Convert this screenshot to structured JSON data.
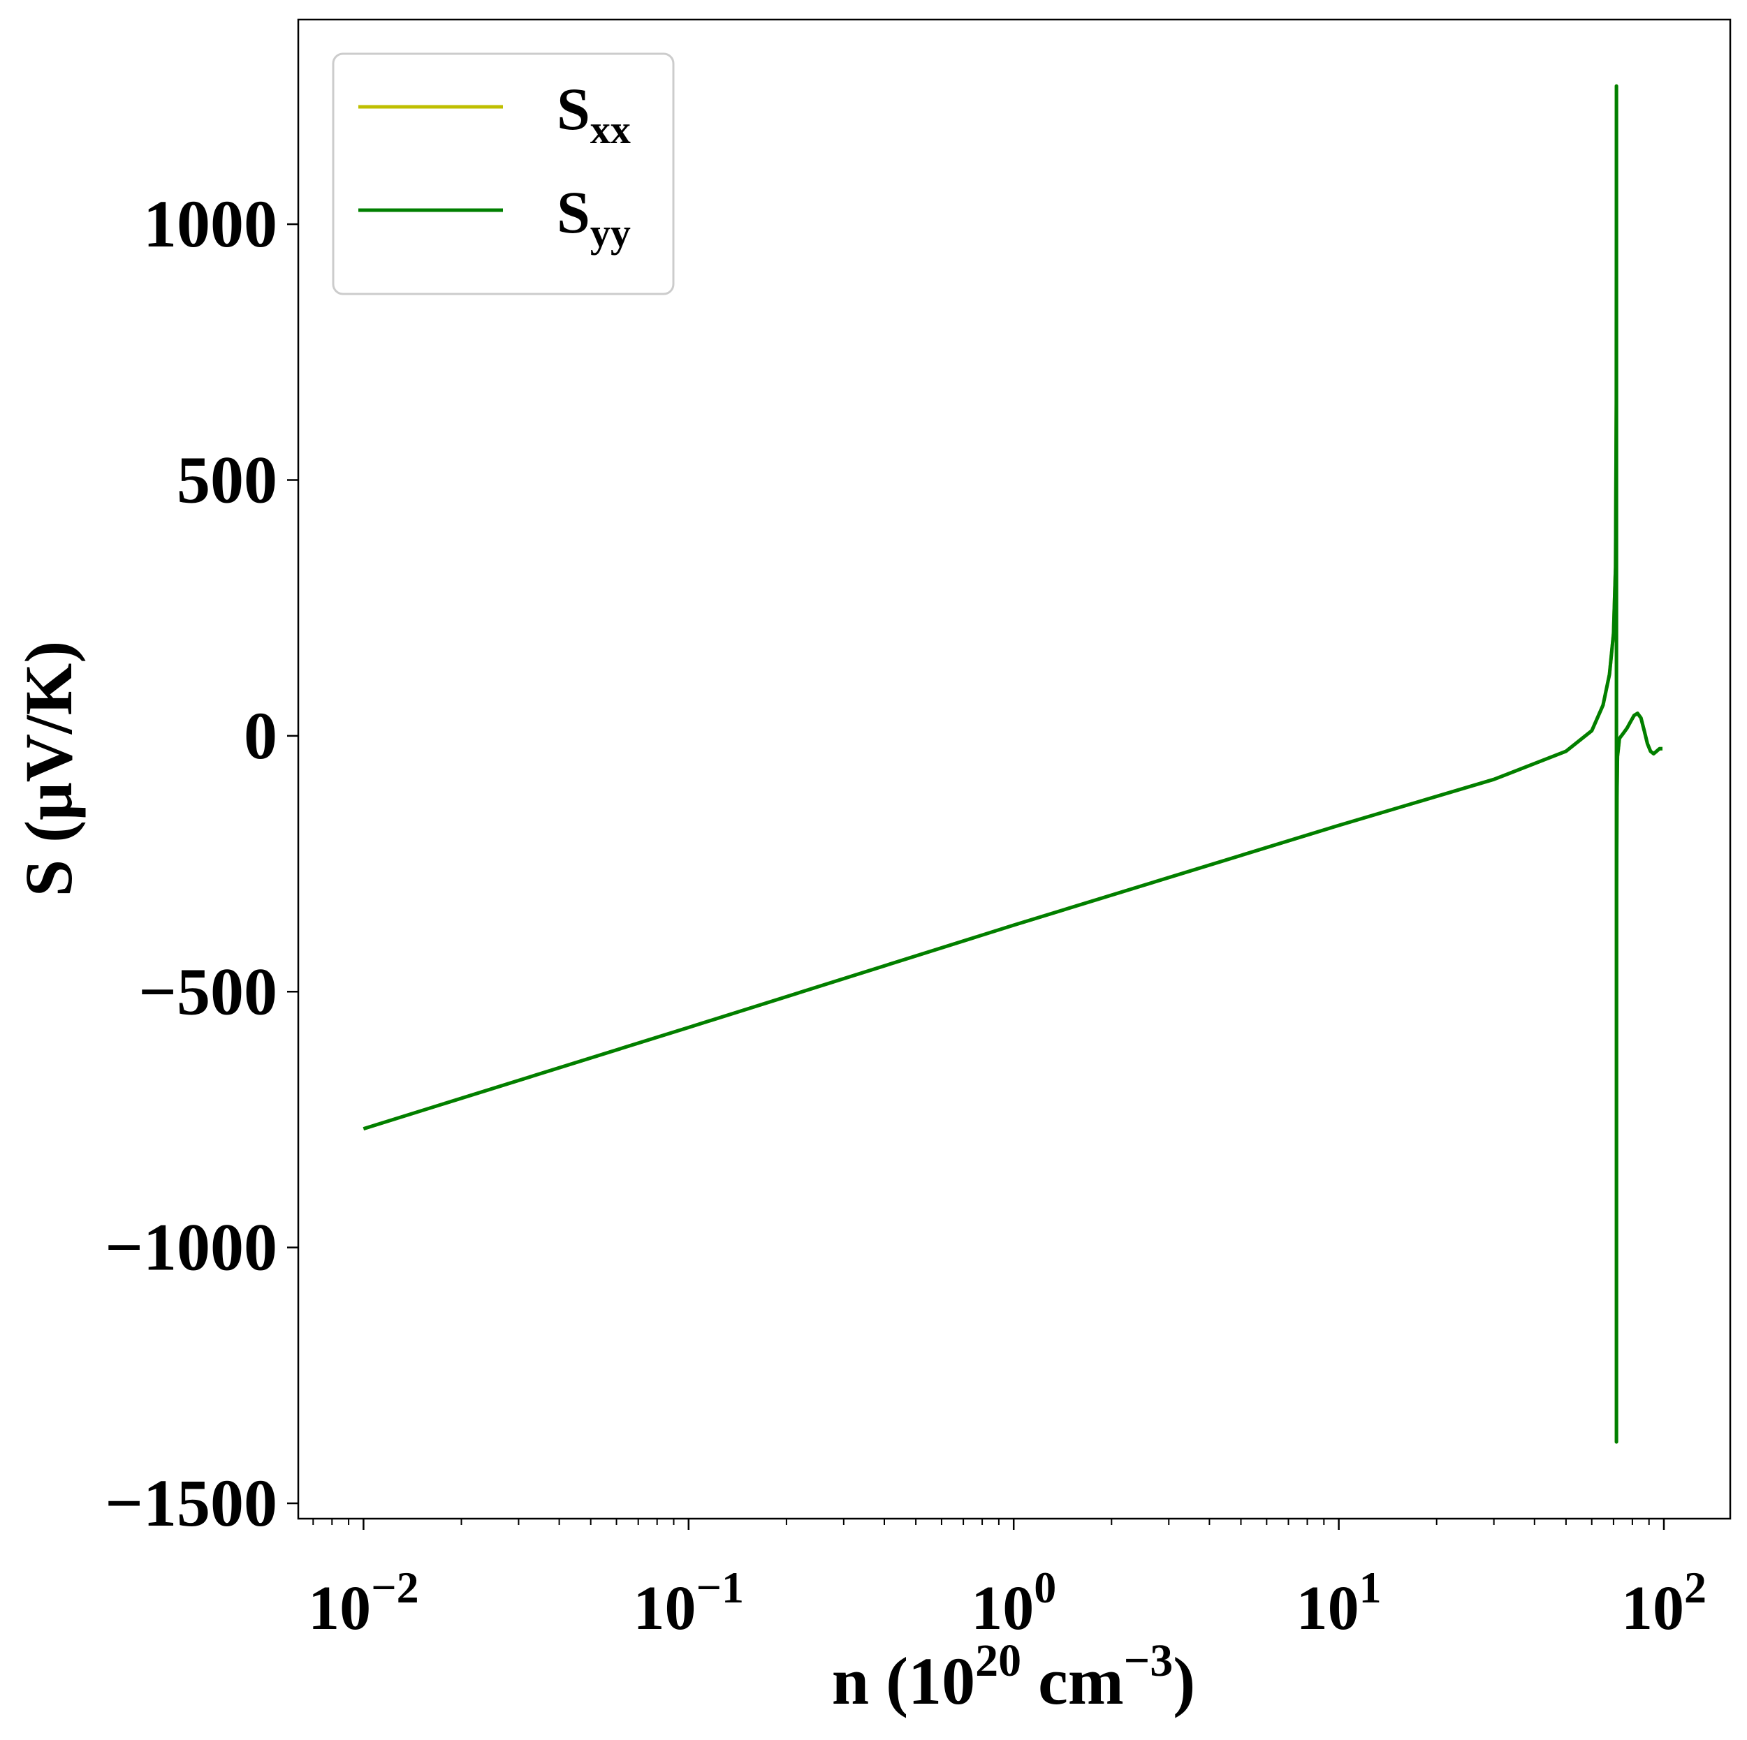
{
  "chart_data": {
    "type": "line",
    "x_scale": "log",
    "xlim": [
      0.0063,
      160
    ],
    "ylim": [
      -1530,
      1400
    ],
    "grid": false,
    "legend_position": "top-left",
    "xlabel": {
      "pre": "n (10",
      "sup1": "20",
      "mid": " cm",
      "sup2": "−3",
      "post": ")"
    },
    "ylabel": "S (μV/K)",
    "x_ticks": [
      {
        "value": 0.01,
        "base": "10",
        "exp": "−2"
      },
      {
        "value": 0.1,
        "base": "10",
        "exp": "−1"
      },
      {
        "value": 1,
        "base": "10",
        "exp": "0"
      },
      {
        "value": 10,
        "base": "10",
        "exp": "1"
      },
      {
        "value": 100,
        "base": "10",
        "exp": "2"
      }
    ],
    "y_ticks": [
      {
        "value": -1500,
        "label": "−1500"
      },
      {
        "value": -1000,
        "label": "−1000"
      },
      {
        "value": -500,
        "label": "−500"
      },
      {
        "value": 0,
        "label": "0"
      },
      {
        "value": 500,
        "label": "500"
      },
      {
        "value": 1000,
        "label": "1000"
      }
    ],
    "series": [
      {
        "name": "S",
        "name_sub": "xx",
        "color": "#bfbf00",
        "x": [
          0.01,
          0.1,
          1,
          10,
          30,
          50,
          60,
          65,
          68,
          70,
          71,
          71.4,
          71.45,
          71.48,
          71.5,
          71.55,
          71.7,
          72,
          73,
          75,
          77,
          79,
          81,
          83,
          85,
          87,
          89,
          91,
          93,
          95,
          97,
          99
        ],
        "y": [
          -768,
          -570,
          -370,
          -175,
          -85,
          -30,
          10,
          60,
          120,
          200,
          330,
          650,
          1270,
          -1380,
          -600,
          -300,
          -120,
          -40,
          -5,
          5,
          15,
          28,
          40,
          44,
          35,
          10,
          -15,
          -30,
          -35,
          -30,
          -25,
          -25
        ]
      },
      {
        "name": "S",
        "name_sub": "yy",
        "color": "#007f00",
        "x": [
          0.01,
          0.1,
          1,
          10,
          30,
          50,
          60,
          65,
          68,
          70,
          71,
          71.4,
          71.45,
          71.48,
          71.5,
          71.55,
          71.7,
          72,
          73,
          75,
          77,
          79,
          81,
          83,
          85,
          87,
          89,
          91,
          93,
          95,
          97,
          99
        ],
        "y": [
          -768,
          -570,
          -370,
          -175,
          -85,
          -30,
          10,
          60,
          120,
          200,
          330,
          650,
          1270,
          -1380,
          -600,
          -300,
          -120,
          -40,
          -5,
          5,
          15,
          28,
          40,
          44,
          35,
          10,
          -15,
          -30,
          -35,
          -30,
          -25,
          -25
        ]
      }
    ]
  }
}
